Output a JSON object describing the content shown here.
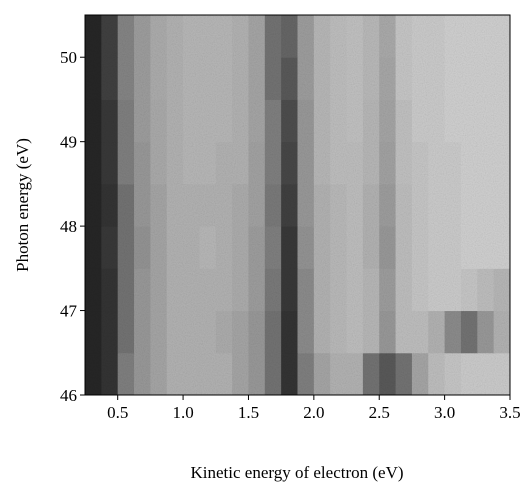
{
  "chart_data": {
    "type": "heatmap",
    "x_label": "Kinetic energy of electron (eV)",
    "y_label": "Photon energy (eV)",
    "xlim": [
      0.25,
      3.5
    ],
    "ylim": [
      46,
      50.5
    ],
    "xticks": [
      0.5,
      {
        "value": 1.0,
        "label": "1.0"
      },
      1.5,
      {
        "value": 2.0,
        "label": "2.0"
      },
      2.5,
      {
        "value": 3.0,
        "label": "3.0"
      },
      3.5
    ],
    "yticks": [
      46,
      47,
      48,
      49,
      50
    ],
    "xbins": [
      0.25,
      0.375,
      0.5,
      0.625,
      0.75,
      0.875,
      1.0,
      1.125,
      1.25,
      1.375,
      1.5,
      1.625,
      1.75,
      1.875,
      2.0,
      2.125,
      2.25,
      2.375,
      2.5,
      2.625,
      2.75,
      2.875,
      3.0,
      3.125,
      3.25,
      3.375,
      3.5
    ],
    "ybins": [
      46,
      46.5,
      47,
      47.5,
      48,
      48.5,
      49,
      49.5,
      50,
      50.5
    ],
    "z": [
      [
        0.85,
        0.8,
        0.5,
        0.4,
        0.35,
        0.3,
        0.3,
        0.3,
        0.3,
        0.35,
        0.4,
        0.55,
        0.8,
        0.5,
        0.35,
        0.3,
        0.3,
        0.55,
        0.65,
        0.55,
        0.35,
        0.25,
        0.22,
        0.2,
        0.2,
        0.2
      ],
      [
        0.85,
        0.8,
        0.55,
        0.4,
        0.35,
        0.3,
        0.3,
        0.3,
        0.32,
        0.35,
        0.4,
        0.55,
        0.8,
        0.45,
        0.3,
        0.27,
        0.25,
        0.28,
        0.4,
        0.25,
        0.25,
        0.3,
        0.45,
        0.55,
        0.4,
        0.3
      ],
      [
        0.85,
        0.8,
        0.55,
        0.4,
        0.35,
        0.3,
        0.3,
        0.3,
        0.3,
        0.32,
        0.38,
        0.52,
        0.78,
        0.45,
        0.3,
        0.27,
        0.25,
        0.28,
        0.38,
        0.25,
        0.22,
        0.2,
        0.2,
        0.22,
        0.25,
        0.28
      ],
      [
        0.85,
        0.78,
        0.55,
        0.42,
        0.35,
        0.3,
        0.3,
        0.28,
        0.3,
        0.32,
        0.38,
        0.5,
        0.78,
        0.42,
        0.3,
        0.27,
        0.25,
        0.3,
        0.4,
        0.25,
        0.22,
        0.2,
        0.2,
        0.18,
        0.18,
        0.18
      ],
      [
        0.85,
        0.8,
        0.55,
        0.4,
        0.35,
        0.3,
        0.3,
        0.3,
        0.3,
        0.32,
        0.36,
        0.52,
        0.75,
        0.4,
        0.3,
        0.27,
        0.25,
        0.3,
        0.38,
        0.25,
        0.22,
        0.2,
        0.2,
        0.18,
        0.18,
        0.18
      ],
      [
        0.85,
        0.78,
        0.5,
        0.4,
        0.33,
        0.3,
        0.28,
        0.28,
        0.3,
        0.3,
        0.36,
        0.5,
        0.72,
        0.4,
        0.28,
        0.25,
        0.25,
        0.28,
        0.36,
        0.24,
        0.22,
        0.2,
        0.2,
        0.18,
        0.18,
        0.18
      ],
      [
        0.85,
        0.78,
        0.5,
        0.38,
        0.33,
        0.3,
        0.28,
        0.28,
        0.28,
        0.3,
        0.35,
        0.5,
        0.7,
        0.4,
        0.28,
        0.25,
        0.24,
        0.28,
        0.35,
        0.24,
        0.2,
        0.2,
        0.18,
        0.18,
        0.18,
        0.18
      ],
      [
        0.85,
        0.75,
        0.48,
        0.38,
        0.32,
        0.3,
        0.28,
        0.28,
        0.28,
        0.3,
        0.35,
        0.55,
        0.65,
        0.38,
        0.28,
        0.25,
        0.24,
        0.27,
        0.34,
        0.22,
        0.2,
        0.2,
        0.18,
        0.18,
        0.18,
        0.18
      ],
      [
        0.85,
        0.75,
        0.48,
        0.38,
        0.32,
        0.3,
        0.28,
        0.28,
        0.28,
        0.3,
        0.35,
        0.55,
        0.6,
        0.38,
        0.28,
        0.25,
        0.24,
        0.27,
        0.33,
        0.22,
        0.2,
        0.2,
        0.18,
        0.18,
        0.18,
        0.18
      ]
    ]
  }
}
